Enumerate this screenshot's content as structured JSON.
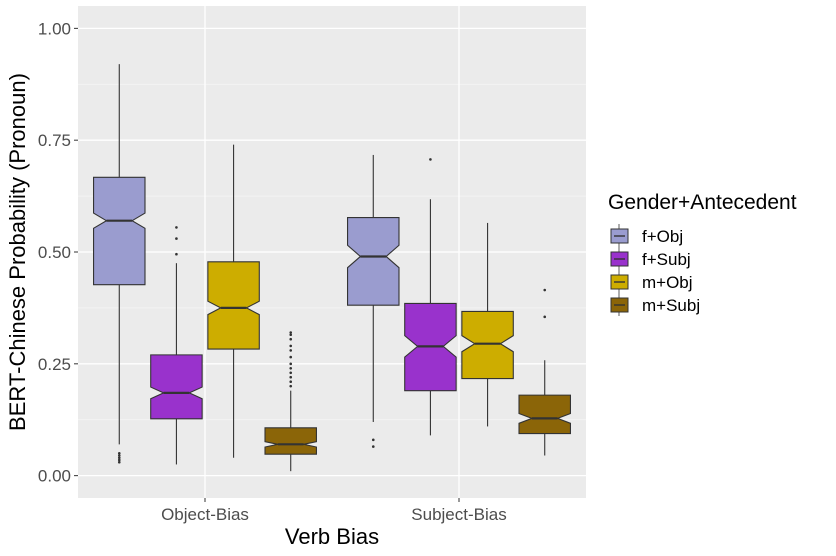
{
  "chart_data": {
    "type": "boxplot",
    "title": "",
    "xlabel": "Verb Bias",
    "ylabel": "BERT-Chinese Probability (Pronoun)",
    "ylim": [
      -0.05,
      1.05
    ],
    "yticks": [
      0.0,
      0.25,
      0.5,
      0.75,
      1.0
    ],
    "ytick_labels": [
      "0.00",
      "0.25",
      "0.50",
      "0.75",
      "1.00"
    ],
    "categories": [
      "Object-Bias",
      "Subject-Bias"
    ],
    "notched": true,
    "grid": true,
    "legend": {
      "title": "Gender+Antecedent",
      "placement": "right"
    },
    "series": [
      {
        "name": "f+Obj",
        "color": "#9a9ccf",
        "boxes": [
          {
            "min": 0.07,
            "q1": 0.427,
            "median": 0.57,
            "q3": 0.667,
            "max": 0.92,
            "notch_low": 0.553,
            "notch_high": 0.587,
            "outliers": [
              0.03,
              0.035,
              0.04,
              0.045,
              0.05
            ]
          },
          {
            "min": 0.12,
            "q1": 0.381,
            "median": 0.49,
            "q3": 0.577,
            "max": 0.717,
            "notch_low": 0.465,
            "notch_high": 0.515,
            "outliers": [
              0.065,
              0.08
            ]
          }
        ]
      },
      {
        "name": "f+Subj",
        "color": "#9932cc",
        "boxes": [
          {
            "min": 0.025,
            "q1": 0.127,
            "median": 0.185,
            "q3": 0.27,
            "max": 0.475,
            "notch_low": 0.172,
            "notch_high": 0.198,
            "outliers": [
              0.495,
              0.53,
              0.555
            ]
          },
          {
            "min": 0.09,
            "q1": 0.19,
            "median": 0.289,
            "q3": 0.385,
            "max": 0.618,
            "notch_low": 0.265,
            "notch_high": 0.313,
            "outliers": [
              0.707
            ]
          }
        ]
      },
      {
        "name": "m+Obj",
        "color": "#cdad00",
        "boxes": [
          {
            "min": 0.04,
            "q1": 0.283,
            "median": 0.375,
            "q3": 0.478,
            "max": 0.74,
            "notch_low": 0.36,
            "notch_high": 0.39,
            "outliers": []
          },
          {
            "min": 0.11,
            "q1": 0.217,
            "median": 0.295,
            "q3": 0.367,
            "max": 0.565,
            "notch_low": 0.277,
            "notch_high": 0.313,
            "outliers": []
          }
        ]
      },
      {
        "name": "m+Subj",
        "color": "#8b6508",
        "boxes": [
          {
            "min": 0.01,
            "q1": 0.048,
            "median": 0.07,
            "q3": 0.107,
            "max": 0.19,
            "notch_low": 0.064,
            "notch_high": 0.076,
            "outliers": [
              0.2,
              0.21,
              0.22,
              0.23,
              0.24,
              0.25,
              0.265,
              0.28,
              0.29,
              0.305,
              0.315,
              0.32
            ]
          },
          {
            "min": 0.045,
            "q1": 0.094,
            "median": 0.128,
            "q3": 0.18,
            "max": 0.258,
            "notch_low": 0.117,
            "notch_high": 0.139,
            "outliers": [
              0.355,
              0.415
            ]
          }
        ]
      }
    ]
  }
}
